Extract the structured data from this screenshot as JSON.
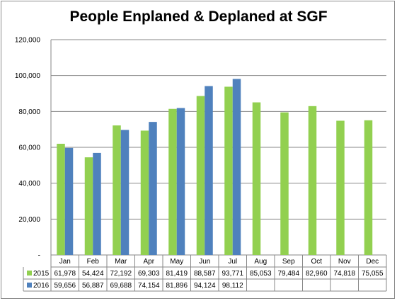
{
  "chart_data": {
    "type": "bar",
    "title": "People Enplaned & Deplaned at SGF",
    "categories": [
      "Jan",
      "Feb",
      "Mar",
      "Apr",
      "May",
      "Jun",
      "Jul",
      "Aug",
      "Sep",
      "Oct",
      "Nov",
      "Dec"
    ],
    "series": [
      {
        "name": "2015",
        "color": "#92d050",
        "values": [
          61978,
          54424,
          72192,
          69303,
          81419,
          88587,
          93771,
          85053,
          79484,
          82960,
          74818,
          75055
        ],
        "labels": [
          "61,978",
          "54,424",
          "72,192",
          "69,303",
          "81,419",
          "88,587",
          "93,771",
          "85,053",
          "79,484",
          "82,960",
          "74,818",
          "75,055"
        ]
      },
      {
        "name": "2016",
        "color": "#4f81bd",
        "values": [
          59656,
          56887,
          69688,
          74154,
          81896,
          94124,
          98112,
          null,
          null,
          null,
          null,
          null
        ],
        "labels": [
          "59,656",
          "56,887",
          "69,688",
          "74,154",
          "81,896",
          "94,124",
          "98,112",
          "",
          "",
          "",
          "",
          ""
        ]
      }
    ],
    "ylim": [
      0,
      120000
    ],
    "yticks": [
      0,
      20000,
      40000,
      60000,
      80000,
      100000,
      120000
    ],
    "ytick_labels": [
      "-",
      "20,000",
      "40,000",
      "60,000",
      "80,000",
      "100,000",
      "120,000"
    ],
    "grid": true,
    "legend": "data-table",
    "data_table": true
  }
}
